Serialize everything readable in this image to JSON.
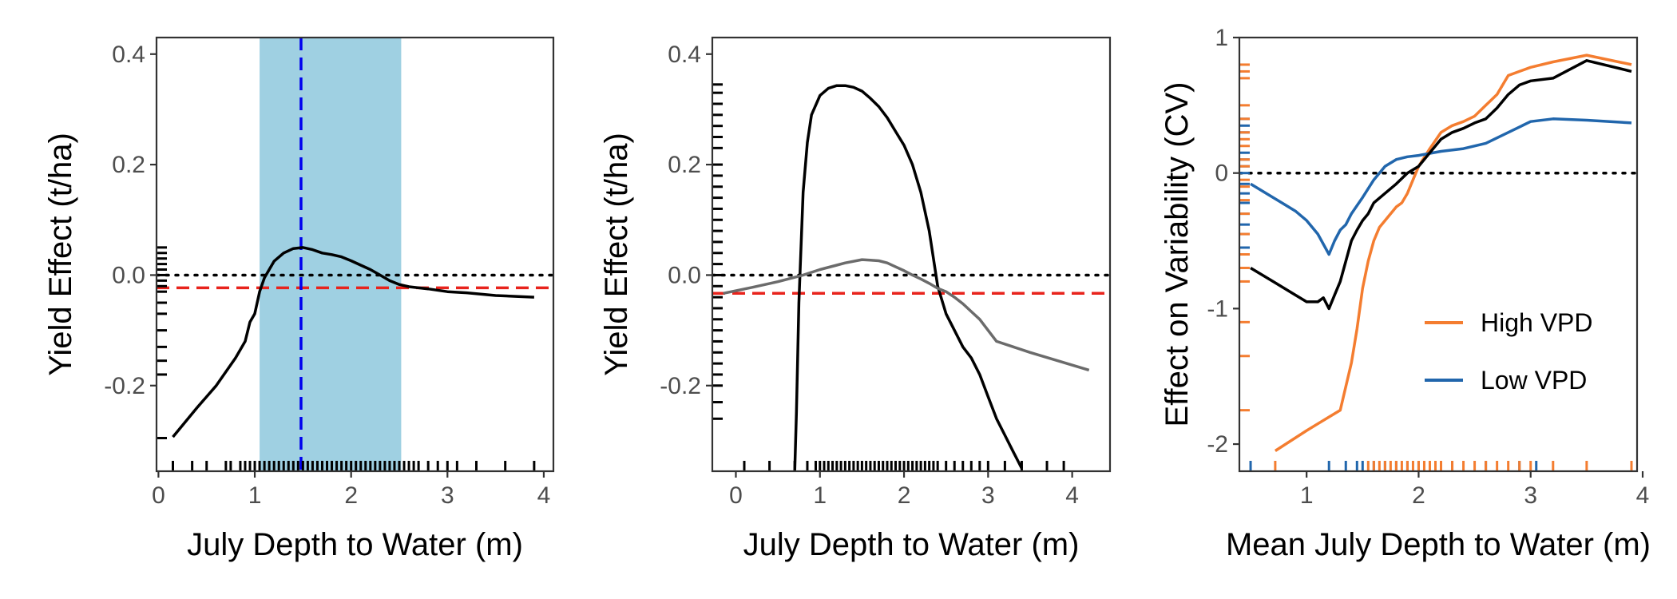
{
  "chart_data": [
    {
      "type": "line",
      "xlabel": "July Depth to Water (m)",
      "ylabel": "Yield Effect (t/ha)",
      "xlim": [
        -0.02,
        4.1
      ],
      "ylim": [
        -0.355,
        0.43
      ],
      "xticks": [
        0,
        1,
        2,
        3,
        4
      ],
      "yticks": [
        -0.2,
        0.0,
        0.2,
        0.4
      ],
      "ytick_labels": [
        "-0.2",
        "0.0",
        "0.2",
        "0.4"
      ],
      "grid": false,
      "shaded_region": {
        "x": [
          1.05,
          2.52
        ],
        "color": "#9fd0e2"
      },
      "vline": {
        "x": 1.48,
        "color": "#0000ee",
        "style": "dashed"
      },
      "hlines": [
        {
          "y": 0.0,
          "color": "#000000",
          "style": "dotted"
        },
        {
          "y": -0.023,
          "color": "#e8231c",
          "style": "dashed"
        }
      ],
      "series": [
        {
          "color": "#000000",
          "x": [
            0.15,
            0.4,
            0.6,
            0.8,
            0.9,
            0.95,
            1.0,
            1.05,
            1.1,
            1.2,
            1.3,
            1.4,
            1.5,
            1.6,
            1.7,
            1.8,
            1.9,
            2.0,
            2.1,
            2.2,
            2.3,
            2.4,
            2.5,
            2.6,
            2.8,
            3.0,
            3.2,
            3.5,
            3.9
          ],
          "y": [
            -0.293,
            -0.24,
            -0.2,
            -0.15,
            -0.12,
            -0.085,
            -0.07,
            -0.03,
            -0.005,
            0.025,
            0.04,
            0.048,
            0.05,
            0.046,
            0.04,
            0.037,
            0.033,
            0.026,
            0.018,
            0.01,
            0.0,
            -0.01,
            -0.017,
            -0.021,
            -0.025,
            -0.03,
            -0.032,
            -0.037,
            -0.04
          ]
        }
      ],
      "rug_x": [
        0.15,
        0.35,
        0.5,
        0.7,
        0.75,
        0.85,
        0.9,
        0.95,
        1.0,
        1.05,
        1.1,
        1.15,
        1.2,
        1.25,
        1.3,
        1.35,
        1.4,
        1.45,
        1.5,
        1.55,
        1.6,
        1.65,
        1.7,
        1.75,
        1.8,
        1.85,
        1.9,
        1.95,
        2.0,
        2.05,
        2.1,
        2.15,
        2.2,
        2.25,
        2.3,
        2.35,
        2.4,
        2.45,
        2.5,
        2.55,
        2.6,
        2.65,
        2.7,
        2.8,
        2.9,
        3.0,
        3.1,
        3.3,
        3.6,
        3.9
      ],
      "rug_y": [
        0.05,
        0.04,
        0.03,
        0.02,
        0.01,
        0.0,
        -0.01,
        -0.02,
        -0.03,
        -0.05,
        -0.07,
        -0.1,
        -0.13,
        -0.155,
        -0.18,
        -0.295
      ]
    },
    {
      "type": "line",
      "xlabel": "July Depth to Water (m)",
      "ylabel": "Yield Effect (t/ha)",
      "xlim": [
        -0.28,
        4.45
      ],
      "ylim": [
        -0.355,
        0.43
      ],
      "xticks": [
        0,
        1,
        2,
        3,
        4
      ],
      "yticks": [
        -0.2,
        0.0,
        0.2,
        0.4
      ],
      "ytick_labels": [
        "-0.2",
        "0.0",
        "0.2",
        "0.4"
      ],
      "grid": false,
      "hlines": [
        {
          "y": 0.0,
          "color": "#000000",
          "style": "dotted"
        },
        {
          "y": -0.033,
          "color": "#e8231c",
          "style": "dashed"
        }
      ],
      "series": [
        {
          "color": "#000000",
          "x": [
            0.7,
            0.72,
            0.75,
            0.8,
            0.85,
            0.9,
            1.0,
            1.1,
            1.2,
            1.3,
            1.4,
            1.5,
            1.6,
            1.7,
            1.8,
            1.9,
            2.0,
            2.1,
            2.2,
            2.3,
            2.4,
            2.5,
            2.6,
            2.7,
            2.8,
            2.9,
            3.0,
            3.1,
            3.2,
            3.3,
            3.4
          ],
          "y": [
            -0.355,
            -0.25,
            -0.05,
            0.15,
            0.24,
            0.29,
            0.325,
            0.338,
            0.343,
            0.343,
            0.34,
            0.333,
            0.32,
            0.305,
            0.285,
            0.26,
            0.235,
            0.2,
            0.15,
            0.08,
            -0.02,
            -0.07,
            -0.1,
            -0.13,
            -0.15,
            -0.18,
            -0.22,
            -0.26,
            -0.29,
            -0.32,
            -0.35
          ]
        },
        {
          "color": "#6b6b6b",
          "x": [
            -0.15,
            0.2,
            0.5,
            0.8,
            1.0,
            1.2,
            1.3,
            1.5,
            1.6,
            1.7,
            1.8,
            1.9,
            2.0,
            2.1,
            2.2,
            2.3,
            2.4,
            2.5,
            2.6,
            2.7,
            2.8,
            2.9,
            3.0,
            3.1,
            3.5,
            4.2
          ],
          "y": [
            -0.033,
            -0.022,
            -0.012,
            0.0,
            0.01,
            0.018,
            0.022,
            0.028,
            0.027,
            0.026,
            0.022,
            0.015,
            0.008,
            0.0,
            -0.007,
            -0.015,
            -0.024,
            -0.03,
            -0.04,
            -0.052,
            -0.066,
            -0.08,
            -0.1,
            -0.12,
            -0.14,
            -0.172
          ]
        }
      ],
      "rug_x": [
        0.1,
        0.4,
        0.7,
        0.85,
        0.95,
        1.0,
        1.05,
        1.1,
        1.15,
        1.2,
        1.25,
        1.3,
        1.35,
        1.4,
        1.45,
        1.5,
        1.55,
        1.6,
        1.65,
        1.7,
        1.75,
        1.8,
        1.85,
        1.9,
        1.95,
        2.0,
        2.05,
        2.1,
        2.15,
        2.2,
        2.25,
        2.3,
        2.35,
        2.4,
        2.5,
        2.6,
        2.7,
        2.8,
        2.9,
        3.0,
        3.2,
        3.4,
        3.7,
        3.9
      ],
      "rug_y": [
        0.345,
        0.33,
        0.31,
        0.29,
        0.27,
        0.25,
        0.23,
        0.2,
        0.18,
        0.16,
        0.14,
        0.12,
        0.1,
        0.08,
        0.06,
        0.04,
        0.02,
        0.0,
        -0.02,
        -0.04,
        -0.06,
        -0.08,
        -0.1,
        -0.12,
        -0.14,
        -0.16,
        -0.18,
        -0.2,
        -0.23,
        -0.26
      ]
    },
    {
      "type": "line",
      "xlabel": "Mean July Depth to Water (m)",
      "ylabel": "Effect on Variability (CV)",
      "xlim": [
        0.4,
        3.95
      ],
      "ylim": [
        -2.2,
        1.0
      ],
      "xticks": [
        1,
        2,
        3,
        4
      ],
      "yticks": [
        -2,
        -1,
        0,
        1
      ],
      "ytick_labels": [
        "-2",
        "-1",
        "0",
        "1"
      ],
      "grid": false,
      "legend_position": "bottom-right",
      "hlines": [
        {
          "y": 0.0,
          "color": "#000000",
          "style": "dotted"
        }
      ],
      "series": [
        {
          "name": "High VPD",
          "color": "#f47d30",
          "x": [
            0.72,
            1.0,
            1.2,
            1.3,
            1.4,
            1.45,
            1.5,
            1.55,
            1.6,
            1.65,
            1.7,
            1.75,
            1.8,
            1.85,
            1.9,
            1.95,
            2.0,
            2.1,
            2.2,
            2.3,
            2.4,
            2.5,
            2.6,
            2.7,
            2.8,
            2.9,
            3.0,
            3.2,
            3.5,
            3.9
          ],
          "y": [
            -2.05,
            -1.9,
            -1.8,
            -1.75,
            -1.4,
            -1.15,
            -0.85,
            -0.65,
            -0.5,
            -0.4,
            -0.35,
            -0.3,
            -0.25,
            -0.22,
            -0.15,
            -0.05,
            0.05,
            0.18,
            0.3,
            0.35,
            0.38,
            0.42,
            0.5,
            0.58,
            0.72,
            0.75,
            0.78,
            0.82,
            0.87,
            0.8
          ]
        },
        {
          "name": "Low VPD",
          "color": "#2166ac",
          "x": [
            0.5,
            0.7,
            0.9,
            1.0,
            1.1,
            1.2,
            1.25,
            1.3,
            1.35,
            1.4,
            1.5,
            1.6,
            1.7,
            1.8,
            1.9,
            2.0,
            2.2,
            2.4,
            2.6,
            2.8,
            3.0,
            3.2,
            3.5,
            3.9
          ],
          "y": [
            -0.08,
            -0.18,
            -0.28,
            -0.35,
            -0.45,
            -0.6,
            -0.5,
            -0.42,
            -0.38,
            -0.3,
            -0.18,
            -0.05,
            0.05,
            0.1,
            0.12,
            0.13,
            0.16,
            0.18,
            0.22,
            0.3,
            0.38,
            0.4,
            0.39,
            0.37
          ]
        },
        {
          "color": "#000000",
          "x": [
            0.5,
            0.7,
            0.9,
            1.0,
            1.1,
            1.15,
            1.2,
            1.25,
            1.3,
            1.35,
            1.4,
            1.45,
            1.5,
            1.55,
            1.6,
            1.7,
            1.8,
            1.9,
            2.0,
            2.1,
            2.2,
            2.3,
            2.4,
            2.5,
            2.6,
            2.7,
            2.8,
            2.9,
            3.0,
            3.2,
            3.5,
            3.9
          ],
          "y": [
            -0.7,
            -0.8,
            -0.9,
            -0.95,
            -0.95,
            -0.92,
            -1.0,
            -0.9,
            -0.8,
            -0.65,
            -0.5,
            -0.42,
            -0.35,
            -0.3,
            -0.22,
            -0.15,
            -0.08,
            0.0,
            0.05,
            0.15,
            0.25,
            0.3,
            0.33,
            0.37,
            0.4,
            0.48,
            0.58,
            0.65,
            0.68,
            0.7,
            0.83,
            0.75
          ]
        }
      ],
      "rug_x_high": [
        0.72,
        1.55,
        1.6,
        1.65,
        1.7,
        1.75,
        1.8,
        1.85,
        1.9,
        1.95,
        2.0,
        2.05,
        2.1,
        2.15,
        2.2,
        2.3,
        2.4,
        2.5,
        2.6,
        2.7,
        2.8,
        2.9,
        3.0,
        3.2,
        3.5,
        3.9
      ],
      "rug_x_low": [
        0.5,
        1.2,
        1.35,
        1.45,
        1.5,
        1.6,
        1.7,
        1.8,
        1.9,
        2.0,
        2.15,
        2.3,
        2.6,
        2.9,
        3.05
      ],
      "rug_y_high": [
        0.8,
        0.75,
        0.7,
        0.5,
        0.4,
        0.3,
        0.25,
        0.2,
        0.1,
        0.05,
        -0.05,
        -0.1,
        -0.2,
        -0.3,
        -0.45,
        -0.6,
        -0.7,
        -0.8,
        -1.1,
        -1.35,
        -1.75
      ],
      "rug_y_low": [
        0.4,
        0.35,
        0.3,
        0.15,
        0.1,
        0.05,
        0.0,
        -0.08,
        -0.15,
        -0.22,
        -0.3,
        -0.38,
        -0.45,
        -0.55
      ]
    }
  ]
}
